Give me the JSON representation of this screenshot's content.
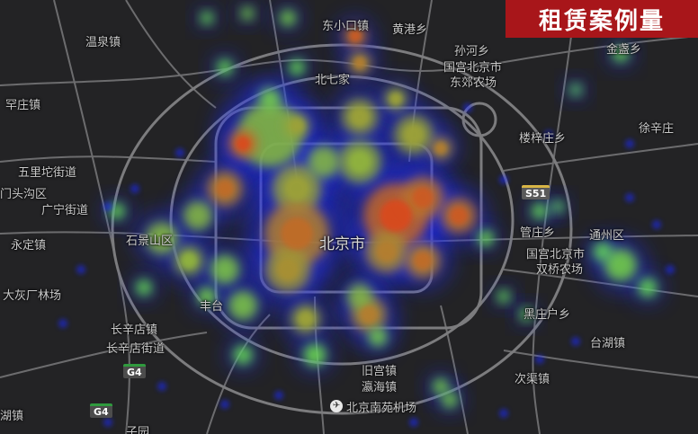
{
  "title": "租赁案例量",
  "colors": {
    "background": "#232325",
    "road": "#6e6e70",
    "ring_road": "#7a7a7c",
    "badge": "#a8161a",
    "heat_low": "#1a2cff",
    "heat_mid": "#6be84a",
    "heat_high": "#e6371a"
  },
  "labels": [
    {
      "id": "wenquan",
      "text": "温泉镇"
    },
    {
      "id": "dongxiao",
      "text": "东小口镇"
    },
    {
      "id": "huanggang",
      "text": "黄港乡"
    },
    {
      "id": "sunhe",
      "text": "孙河乡"
    },
    {
      "id": "jinzhan",
      "text": "金盏乡"
    },
    {
      "id": "guomao",
      "text": "国宫北京市"
    },
    {
      "id": "dongbei",
      "text": "东郊农场"
    },
    {
      "id": "beiqijia",
      "text": "北七家"
    },
    {
      "id": "xizhuang",
      "text": "罕庄镇"
    },
    {
      "id": "xuxinzhuang",
      "text": "徐辛庄"
    },
    {
      "id": "loulu",
      "text": "楼梓庄乡"
    },
    {
      "id": "wulukou",
      "text": "五里坨街道"
    },
    {
      "id": "menggou",
      "text": "门头沟区"
    },
    {
      "id": "guangning",
      "text": "广宁街道"
    },
    {
      "id": "yongding",
      "text": "永定镇"
    },
    {
      "id": "shijingshan",
      "text": "石景山区"
    },
    {
      "id": "beijing",
      "text": "北京市"
    },
    {
      "id": "guanzhuang",
      "text": "管庄乡"
    },
    {
      "id": "tongzhou",
      "text": "通州区"
    },
    {
      "id": "shuangqiao",
      "text": "双桥农场"
    },
    {
      "id": "dahuichang",
      "text": "大灰厂林场"
    },
    {
      "id": "fengtai",
      "text": "丰台"
    },
    {
      "id": "heizhuang",
      "text": "黑庄户乡"
    },
    {
      "id": "changxindian",
      "text": "长辛店镇"
    },
    {
      "id": "changxindianjd",
      "text": "长辛店街道"
    },
    {
      "id": "taihu",
      "text": "台湖镇"
    },
    {
      "id": "jiugong",
      "text": "旧宫镇"
    },
    {
      "id": "yingjie",
      "text": "瀛海镇"
    },
    {
      "id": "ciqu",
      "text": "次渠镇"
    },
    {
      "id": "nanyuan",
      "text": "北京南苑机场"
    },
    {
      "id": "hu",
      "text": "湖镇"
    },
    {
      "id": "zhiyuan",
      "text": "子园"
    },
    {
      "id": "guoxi",
      "text": "国宫北京市"
    }
  ],
  "shields": [
    {
      "id": "g4a",
      "text": "G4"
    },
    {
      "id": "g4b",
      "text": "G4"
    },
    {
      "id": "s51",
      "text": "S51"
    }
  ],
  "icons": {
    "airport": "plane-icon"
  }
}
